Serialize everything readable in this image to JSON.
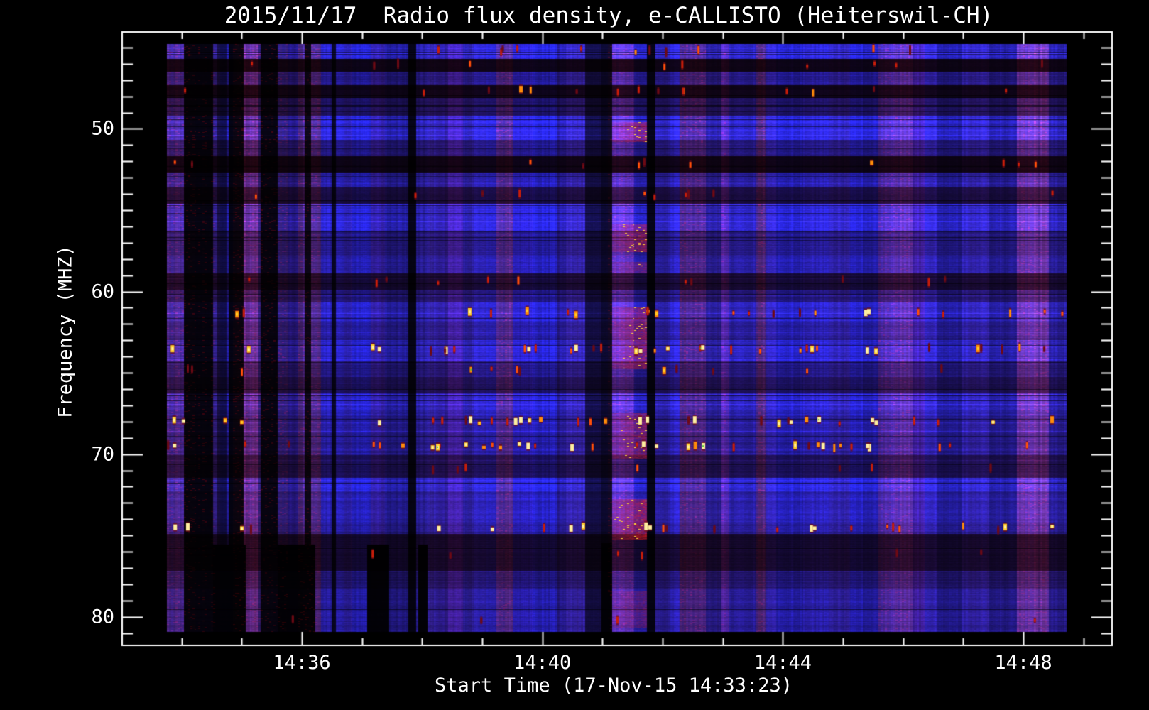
{
  "chart_data": {
    "type": "heatmap",
    "title": "2015/11/17  Radio flux density, e-CALLISTO (Heiterswil-CH)",
    "xlabel": "Start Time (17-Nov-15 14:33:23)",
    "ylabel": "Frequency (MHZ)",
    "legend": "none",
    "grid": false,
    "x_axis": {
      "start_time": "14:33:23",
      "major_labels": [
        "14:36",
        "14:40",
        "14:44",
        "14:48"
      ],
      "major_ks": [
        3,
        7,
        11,
        15
      ],
      "minor_k_max": 16,
      "k_step_frac": 0.06065
    },
    "y_axis": {
      "range": [
        44.0,
        81.8
      ],
      "major_values": [
        50,
        60,
        70,
        80
      ],
      "minor_min": 45,
      "minor_max": 81,
      "minor_step": 1
    },
    "data_freq_range": [
      44.8,
      81.0
    ],
    "palette": {
      "background": "#000000",
      "axis": "#ffffff",
      "blue": [
        40,
        40,
        236
      ],
      "purple": [
        138,
        72,
        198
      ],
      "event_red": [
        215,
        30,
        25
      ],
      "event_yellow": [
        255,
        205,
        60
      ],
      "speckle_ramp": [
        [
          110,
          10,
          20
        ],
        [
          200,
          30,
          10
        ],
        [
          255,
          80,
          10
        ],
        [
          255,
          140,
          10
        ],
        [
          255,
          205,
          40
        ],
        [
          255,
          240,
          160
        ]
      ],
      "green_fleck": [
        60,
        200,
        50
      ]
    },
    "bands": [
      [
        44.8,
        45.7,
        1.0
      ],
      [
        45.7,
        46.5,
        0.1
      ],
      [
        46.5,
        47.3,
        0.62
      ],
      [
        47.3,
        48.1,
        0.11
      ],
      [
        48.1,
        49.2,
        0.42
      ],
      [
        49.2,
        50.7,
        1.0
      ],
      [
        50.7,
        51.7,
        0.58
      ],
      [
        51.7,
        52.7,
        0.1
      ],
      [
        52.7,
        53.6,
        0.75
      ],
      [
        53.6,
        54.6,
        0.3
      ],
      [
        54.6,
        56.3,
        0.95
      ],
      [
        56.3,
        57.8,
        0.62
      ],
      [
        57.8,
        58.9,
        0.78
      ],
      [
        58.9,
        59.9,
        0.22
      ],
      [
        59.9,
        60.7,
        0.52
      ],
      [
        60.7,
        61.9,
        0.88
      ],
      [
        61.9,
        63.0,
        0.68
      ],
      [
        63.0,
        64.3,
        0.92
      ],
      [
        64.3,
        65.3,
        0.58
      ],
      [
        65.3,
        66.3,
        0.4
      ],
      [
        66.3,
        67.7,
        0.88
      ],
      [
        67.7,
        68.7,
        0.72
      ],
      [
        68.7,
        70.1,
        0.68
      ],
      [
        70.1,
        71.5,
        0.38
      ],
      [
        71.5,
        72.3,
        1.02
      ],
      [
        72.3,
        74.3,
        0.78
      ],
      [
        74.3,
        74.95,
        0.68
      ],
      [
        74.95,
        77.2,
        0.2
      ],
      [
        77.2,
        78.3,
        0.48
      ],
      [
        78.3,
        81.0,
        0.68
      ]
    ],
    "trend": [
      {
        "t0": 0.0,
        "t1": 0.15,
        "mul": 0.78
      },
      {
        "t0": 0.15,
        "t1": 0.32,
        "mul": 0.92
      },
      {
        "t0": 0.32,
        "t1": 1.0,
        "mul": 1.0
      }
    ],
    "gaps": [
      {
        "t0": 0.0182,
        "t1": 0.0513,
        "level": 0.1
      },
      {
        "t0": 0.0553,
        "t1": 0.0655,
        "level": 0.45
      },
      {
        "t0": 0.0687,
        "t1": 0.0852,
        "level": 0.12
      },
      {
        "t0": 0.105,
        "t1": 0.1223,
        "level": 0.12
      },
      {
        "t0": 0.1523,
        "t1": 0.1602,
        "level": 0.15
      },
      {
        "t0": 0.1831,
        "t1": 0.1878,
        "level": 0.22
      },
      {
        "t0": 0.2683,
        "t1": 0.2762,
        "level": 0.12
      },
      {
        "t0": 0.4657,
        "t1": 0.4838,
        "level": 0.38
      },
      {
        "t0": 0.4838,
        "t1": 0.4956,
        "level": 0.24
      },
      {
        "t0": 0.5343,
        "t1": 0.5422,
        "level": 0.12
      },
      {
        "t0": 0.0513,
        "t1": 0.0868,
        "level": 0.05,
        "fmin": 75.6
      },
      {
        "t0": 0.1223,
        "t1": 0.1657,
        "level": 0.05,
        "fmin": 75.6
      },
      {
        "t0": 0.2225,
        "t1": 0.2462,
        "level": 0.05,
        "fmin": 75.6
      },
      {
        "t0": 0.2801,
        "t1": 0.2904,
        "level": 0.05,
        "fmin": 75.6
      },
      {
        "t0": 0.4838,
        "t1": 0.4956,
        "level": 0.04,
        "fmin": 75.5
      }
    ],
    "speckle_rows": [
      {
        "f": 45.2,
        "density": 0.12,
        "strength": 0.3
      },
      {
        "f": 46.1,
        "density": 0.18,
        "strength": 0.35
      },
      {
        "f": 47.7,
        "density": 0.18,
        "strength": 0.35
      },
      {
        "f": 52.2,
        "density": 0.2,
        "strength": 0.4
      },
      {
        "f": 54.1,
        "density": 0.12,
        "strength": 0.3
      },
      {
        "f": 59.4,
        "density": 0.12,
        "strength": 0.3
      },
      {
        "f": 61.35,
        "density": 0.28,
        "strength": 0.6
      },
      {
        "f": 63.6,
        "density": 0.4,
        "strength": 0.85
      },
      {
        "f": 64.9,
        "density": 0.22,
        "strength": 0.4
      },
      {
        "f": 68.05,
        "density": 0.5,
        "strength": 1.0
      },
      {
        "f": 69.55,
        "density": 0.46,
        "strength": 0.9
      },
      {
        "f": 71.0,
        "density": 0.1,
        "strength": 0.3
      },
      {
        "f": 74.6,
        "density": 0.38,
        "strength": 0.95
      },
      {
        "f": 76.2,
        "density": 0.08,
        "strength": 0.3
      },
      {
        "f": 80.2,
        "density": 0.08,
        "strength": 0.28
      }
    ],
    "event": {
      "t0": 0.4956,
      "t1": 0.5343,
      "boost": 1.12,
      "speckle_density_mul": 2.2,
      "speckle_strength_mul": 1.3,
      "patches": [
        [
          49.6,
          50.8,
          0.5
        ],
        [
          55.9,
          57.6,
          0.45
        ],
        [
          58.2,
          58.9,
          0.3
        ],
        [
          61.0,
          64.8,
          0.45
        ],
        [
          67.5,
          70.3,
          0.42
        ],
        [
          72.8,
          75.3,
          0.55
        ],
        [
          78.5,
          80.7,
          0.25
        ]
      ]
    }
  }
}
